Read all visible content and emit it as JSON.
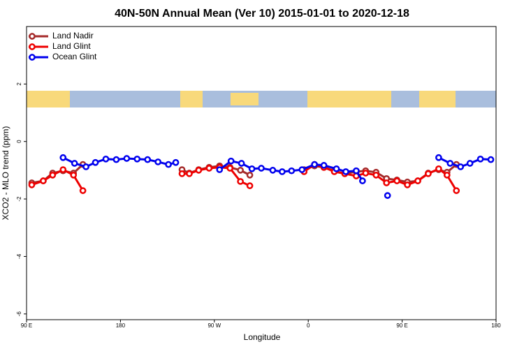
{
  "chart_data": {
    "type": "line",
    "title": "40N-50N Annual Mean (Ver 10)   2015-01-01 to 2020-12-18",
    "x_label": "Longitude",
    "y_label": "XCO2 - MLO trend (ppm)",
    "xlim": [
      90,
      540
    ],
    "ylim": [
      -6.2,
      4
    ],
    "xticks": [
      {
        "value": 90,
        "label": "90 E"
      },
      {
        "value": 180,
        "label": "180"
      },
      {
        "value": 270,
        "label": "90 W"
      },
      {
        "value": 360,
        "label": "0"
      },
      {
        "value": 450,
        "label": "90 E"
      },
      {
        "value": 540,
        "label": "180"
      }
    ],
    "yticks": [
      -6,
      -4,
      -2,
      0,
      2
    ],
    "legend": "top-left",
    "series": [
      {
        "name": "Land Nadir",
        "color": "#a52a2a",
        "x": [
          95,
          106,
          115,
          125,
          135,
          144,
          null,
          239,
          246,
          255,
          265,
          275,
          285,
          295,
          304,
          null,
          356,
          366,
          375,
          385,
          395,
          406,
          415,
          425,
          435,
          445,
          455,
          465,
          475,
          485,
          493,
          502
        ],
        "values": [
          -1.44,
          -1.37,
          -1.1,
          -1.02,
          -1.1,
          -0.8,
          null,
          -0.98,
          -1.1,
          -0.98,
          -0.9,
          -0.85,
          -0.9,
          -1.0,
          -1.17,
          null,
          -0.98,
          -0.85,
          -0.9,
          -1.02,
          -1.12,
          -1.05,
          -1.02,
          -1.07,
          -1.29,
          -1.34,
          -1.41,
          -1.37,
          -1.1,
          -0.98,
          -1.07,
          -0.8
        ]
      },
      {
        "name": "Land Glint",
        "color": "#ee0000",
        "x": [
          95,
          106,
          115,
          125,
          135,
          144,
          null,
          239,
          246,
          255,
          265,
          275,
          285,
          295,
          304,
          null,
          356,
          366,
          375,
          385,
          395,
          406,
          415,
          425,
          435,
          445,
          455,
          465,
          475,
          485,
          493,
          502
        ],
        "values": [
          -1.51,
          -1.37,
          -1.17,
          -0.98,
          -1.17,
          -1.71,
          null,
          -1.12,
          -1.12,
          -1.0,
          -0.93,
          -0.9,
          -0.93,
          -1.39,
          -1.54,
          null,
          -1.05,
          -0.8,
          -0.9,
          -1.05,
          -1.12,
          -1.2,
          -1.1,
          -1.17,
          -1.44,
          -1.37,
          -1.51,
          -1.37,
          -1.12,
          -0.95,
          -1.17,
          -1.71
        ]
      },
      {
        "name": "Ocean Glint",
        "color": "#0000ee",
        "x": [
          125,
          136,
          147,
          156,
          166,
          176,
          186,
          196,
          206,
          216,
          226,
          233,
          null,
          275,
          286,
          296,
          306,
          315,
          326,
          335,
          344,
          354,
          366,
          375,
          387,
          396,
          406,
          412,
          null,
          436,
          null,
          485,
          496,
          506,
          515,
          525,
          535
        ],
        "values": [
          -0.56,
          -0.76,
          -0.88,
          -0.73,
          -0.61,
          -0.63,
          -0.59,
          -0.61,
          -0.63,
          -0.71,
          -0.8,
          -0.73,
          null,
          -0.98,
          -0.68,
          -0.76,
          -0.95,
          -0.93,
          -1.0,
          -1.05,
          -1.02,
          -0.98,
          -0.8,
          -0.83,
          -0.95,
          -1.05,
          -1.02,
          -1.37,
          null,
          -1.88,
          null,
          -0.56,
          -0.76,
          -0.88,
          -0.76,
          -0.61,
          -0.63
        ]
      }
    ]
  }
}
